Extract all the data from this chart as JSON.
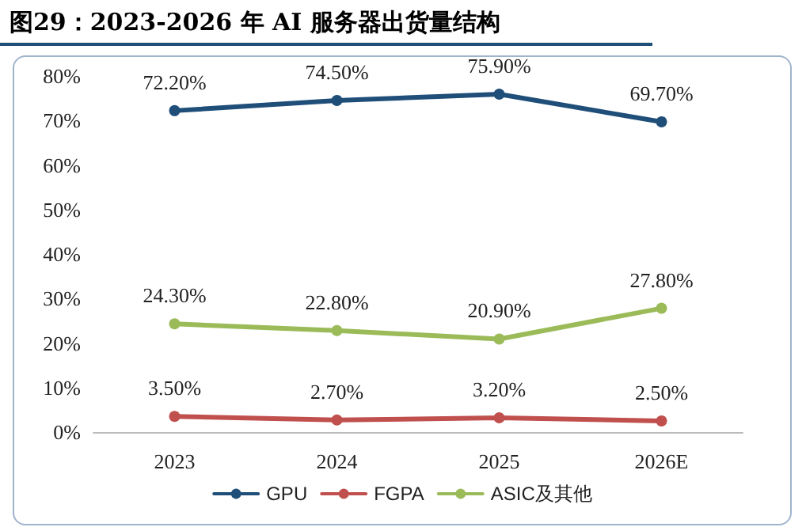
{
  "chart_data": {
    "type": "line",
    "title": "图29：2023-2026 年 AI 服务器出货量结构",
    "categories": [
      "2023",
      "2024",
      "2025",
      "2026E"
    ],
    "series": [
      {
        "name": "GPU",
        "color": "#1f4e79",
        "values": [
          72.2,
          74.5,
          75.9,
          69.7
        ],
        "value_labels": [
          "72.20%",
          "74.50%",
          "75.90%",
          "69.70%"
        ]
      },
      {
        "name": "FGPA",
        "color": "#c0504d",
        "values": [
          3.5,
          2.7,
          3.2,
          2.5
        ],
        "value_labels": [
          "3.50%",
          "2.70%",
          "3.20%",
          "2.50%"
        ]
      },
      {
        "name": "ASIC及其他",
        "color": "#9bbb59",
        "values": [
          24.3,
          22.8,
          20.9,
          27.8
        ],
        "value_labels": [
          "24.30%",
          "22.80%",
          "20.90%",
          "27.80%"
        ]
      }
    ],
    "ylim": [
      0,
      80
    ],
    "yticks": [
      {
        "value": 0,
        "label": "0%"
      },
      {
        "value": 10,
        "label": "10%"
      },
      {
        "value": 20,
        "label": "20%"
      },
      {
        "value": 30,
        "label": "30%"
      },
      {
        "value": 40,
        "label": "40%"
      },
      {
        "value": 50,
        "label": "50%"
      },
      {
        "value": 60,
        "label": "60%"
      },
      {
        "value": 70,
        "label": "70%"
      },
      {
        "value": 80,
        "label": "80%"
      }
    ],
    "grid": false,
    "legend": "bottom",
    "marker": "circle",
    "line_style": "solid"
  }
}
